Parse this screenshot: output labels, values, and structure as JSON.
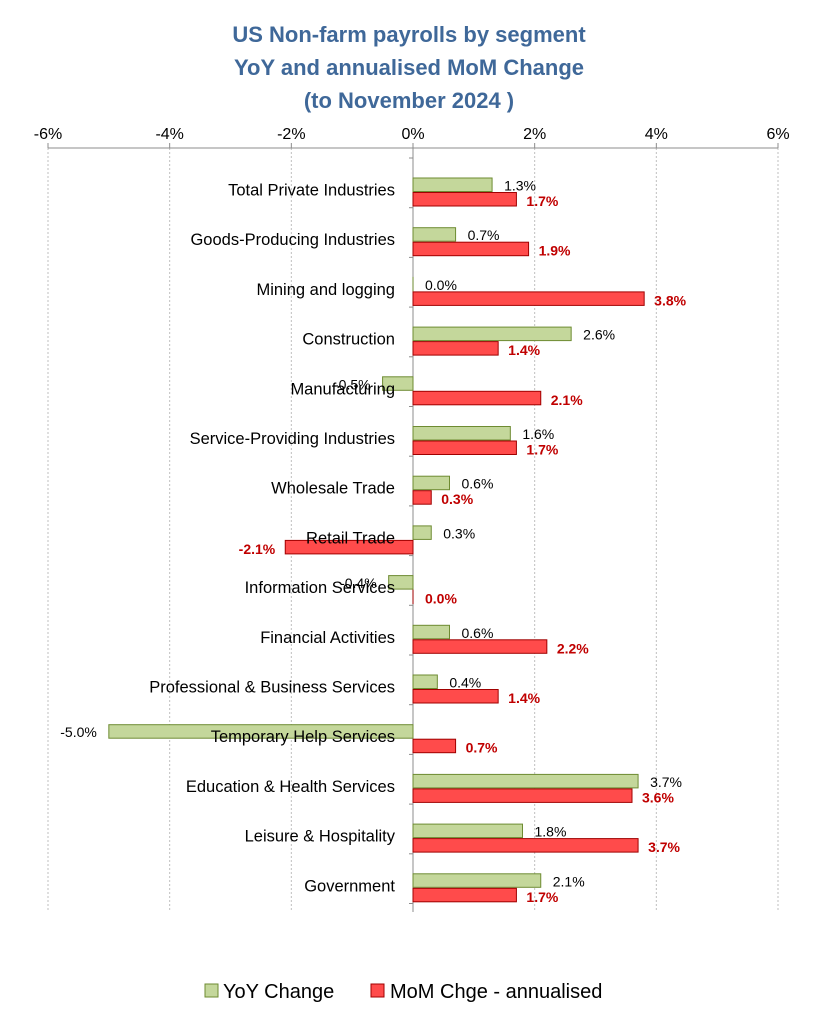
{
  "chart_data": {
    "type": "bar",
    "orientation": "horizontal",
    "title": [
      "US Non-farm payrolls by segment",
      "YoY and annualised MoM Change",
      "(to November 2024 )"
    ],
    "xlim": [
      -6,
      6
    ],
    "x_ticks": [
      "-6%",
      "-4%",
      "-2%",
      "0%",
      "2%",
      "4%",
      "6%"
    ],
    "x_tick_values": [
      -6,
      -4,
      -2,
      0,
      2,
      4,
      6
    ],
    "grid": true,
    "legend_position": "bottom",
    "categories": [
      "Total Private Industries",
      "Goods-Producing Industries",
      "Mining and logging",
      "Construction",
      "Manufacturing",
      "Service-Providing Industries",
      "Wholesale Trade",
      "Retail Trade",
      "Information Services",
      "Financial Activities",
      "Professional & Business Services",
      "Temporary Help Services",
      "Education & Health Services",
      "Leisure & Hospitality",
      "Government"
    ],
    "series": [
      {
        "name": "YoY Change",
        "color": "#C4D79B",
        "border": "#6E8B32",
        "values": [
          1.3,
          0.7,
          0.0,
          2.6,
          -0.5,
          1.6,
          0.6,
          0.3,
          -0.4,
          0.6,
          0.4,
          -5.0,
          3.7,
          1.8,
          2.1
        ],
        "labels": [
          "1.3%",
          "0.7%",
          "0.0%",
          "2.6%",
          "-0.5%",
          "1.6%",
          "0.6%",
          "0.3%",
          "-0.4%",
          "0.6%",
          "0.4%",
          "-5.0%",
          "3.7%",
          "1.8%",
          "2.1%"
        ]
      },
      {
        "name": "MoM Chge - annualised",
        "color": "#FF4B4B",
        "border": "#A00000",
        "label_color": "#C00000",
        "values": [
          1.7,
          1.9,
          3.8,
          1.4,
          2.1,
          1.7,
          0.3,
          -2.1,
          0.0,
          2.2,
          1.4,
          0.7,
          3.6,
          3.7,
          1.7
        ],
        "labels": [
          "1.7%",
          "1.9%",
          "3.8%",
          "1.4%",
          "2.1%",
          "1.7%",
          "0.3%",
          "-2.1%",
          "0.0%",
          "2.2%",
          "1.4%",
          "0.7%",
          "3.6%",
          "3.7%",
          "1.7%"
        ]
      }
    ]
  }
}
